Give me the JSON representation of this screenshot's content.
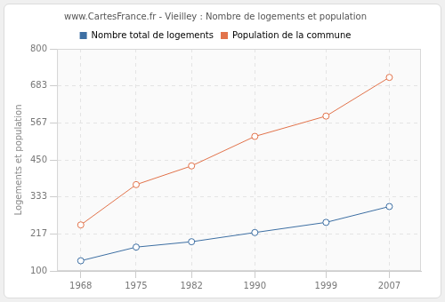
{
  "chart_data": {
    "type": "line",
    "title": "www.CartesFrance.fr - Vieilley : Nombre de logements et population",
    "y_label": "Logements et population",
    "x": [
      1968,
      1975,
      1982,
      1990,
      1999,
      2007
    ],
    "series": [
      {
        "name": "Nombre total de logements",
        "color": "#3d6fa3",
        "values": [
          132,
          175,
          192,
          221,
          253,
          303
        ]
      },
      {
        "name": "Population de la commune",
        "color": "#e2734b",
        "values": [
          245,
          372,
          431,
          524,
          588,
          710
        ]
      }
    ],
    "xlim": [
      1965,
      2011
    ],
    "xticks": [
      1968,
      1975,
      1982,
      1990,
      1999,
      2007
    ],
    "ylim": [
      100,
      800
    ],
    "yticks": [
      100,
      217,
      333,
      450,
      567,
      683,
      800
    ],
    "grid": true,
    "legend": "top",
    "marker": "circle"
  }
}
